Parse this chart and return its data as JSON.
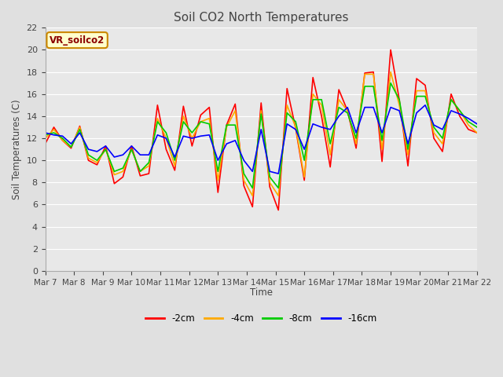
{
  "title": "Soil CO2 North Temperatures",
  "ylabel": "Soil Temperatures (C)",
  "xlabel": "Time",
  "annotation": "VR_soilco2",
  "ylim": [
    0,
    22
  ],
  "yticks": [
    0,
    2,
    4,
    6,
    8,
    10,
    12,
    14,
    16,
    18,
    20,
    22
  ],
  "x_labels": [
    "Mar 7",
    "Mar 8",
    "Mar 9",
    "Mar 10",
    "Mar 11",
    "Mar 12",
    "Mar 13",
    "Mar 14",
    "Mar 15",
    "Mar 16",
    "Mar 17",
    "Mar 18",
    "Mar 19",
    "Mar 20",
    "Mar 21",
    "Mar 22"
  ],
  "series": {
    "-2cm": {
      "color": "#ff0000",
      "data": [
        11.5,
        13.0,
        11.8,
        11.1,
        13.1,
        10.0,
        9.6,
        11.3,
        7.9,
        8.5,
        11.3,
        8.6,
        8.8,
        15.0,
        11.0,
        9.1,
        14.9,
        11.3,
        14.1,
        14.8,
        7.1,
        13.2,
        15.1,
        7.7,
        5.8,
        15.2,
        7.6,
        5.5,
        16.5,
        12.9,
        8.2,
        17.5,
        14.0,
        9.4,
        16.4,
        14.5,
        11.1,
        17.9,
        18.0,
        9.9,
        20.0,
        15.5,
        9.5,
        17.4,
        16.8,
        12.0,
        10.8,
        16.0,
        14.0,
        12.8,
        12.5
      ]
    },
    "-4cm": {
      "color": "#ffaa00",
      "data": [
        12.0,
        12.8,
        11.8,
        11.2,
        13.0,
        10.2,
        9.8,
        11.0,
        8.7,
        9.0,
        11.0,
        9.0,
        9.5,
        13.8,
        12.0,
        9.5,
        14.0,
        12.0,
        13.5,
        13.8,
        8.2,
        13.0,
        14.5,
        8.2,
        6.8,
        14.5,
        8.0,
        6.8,
        15.0,
        13.0,
        8.5,
        16.0,
        15.0,
        10.5,
        15.5,
        14.5,
        11.5,
        17.8,
        17.8,
        11.0,
        18.0,
        15.0,
        10.5,
        16.3,
        16.3,
        12.5,
        11.5,
        15.5,
        14.5,
        13.2,
        12.5
      ]
    },
    "-8cm": {
      "color": "#00cc00",
      "data": [
        12.3,
        12.5,
        12.0,
        11.2,
        12.8,
        10.5,
        10.0,
        11.0,
        9.0,
        9.3,
        11.0,
        9.0,
        9.8,
        13.5,
        12.5,
        10.0,
        13.5,
        12.5,
        13.5,
        13.3,
        9.0,
        13.2,
        13.2,
        8.8,
        7.5,
        14.2,
        8.5,
        7.5,
        14.3,
        13.5,
        10.0,
        15.5,
        15.5,
        11.5,
        14.8,
        14.3,
        12.0,
        16.7,
        16.7,
        11.8,
        17.0,
        15.5,
        11.0,
        15.8,
        15.8,
        13.0,
        12.0,
        15.5,
        14.5,
        13.5,
        13.0
      ]
    },
    "-16cm": {
      "color": "#0000ff",
      "data": [
        12.5,
        12.3,
        12.2,
        11.5,
        12.5,
        11.0,
        10.8,
        11.3,
        10.3,
        10.5,
        11.3,
        10.5,
        10.5,
        12.3,
        12.0,
        10.3,
        12.2,
        12.0,
        12.2,
        12.3,
        10.0,
        11.5,
        11.8,
        10.0,
        9.0,
        12.8,
        9.0,
        8.8,
        13.3,
        12.8,
        11.0,
        13.3,
        13.0,
        12.8,
        14.0,
        14.8,
        12.5,
        14.8,
        14.8,
        12.5,
        14.8,
        14.5,
        11.5,
        14.3,
        15.0,
        13.2,
        12.8,
        14.5,
        14.2,
        13.8,
        13.3
      ]
    }
  },
  "n_days": 15,
  "background_color": "#e0e0e0",
  "plot_bg_color": "#e8e8e8",
  "grid_color": "#ffffff",
  "title_color": "#444444",
  "tick_color": "#444444",
  "annotation_text_color": "#8b0000",
  "annotation_bg": "#ffffcc",
  "annotation_edge": "#cc8800"
}
